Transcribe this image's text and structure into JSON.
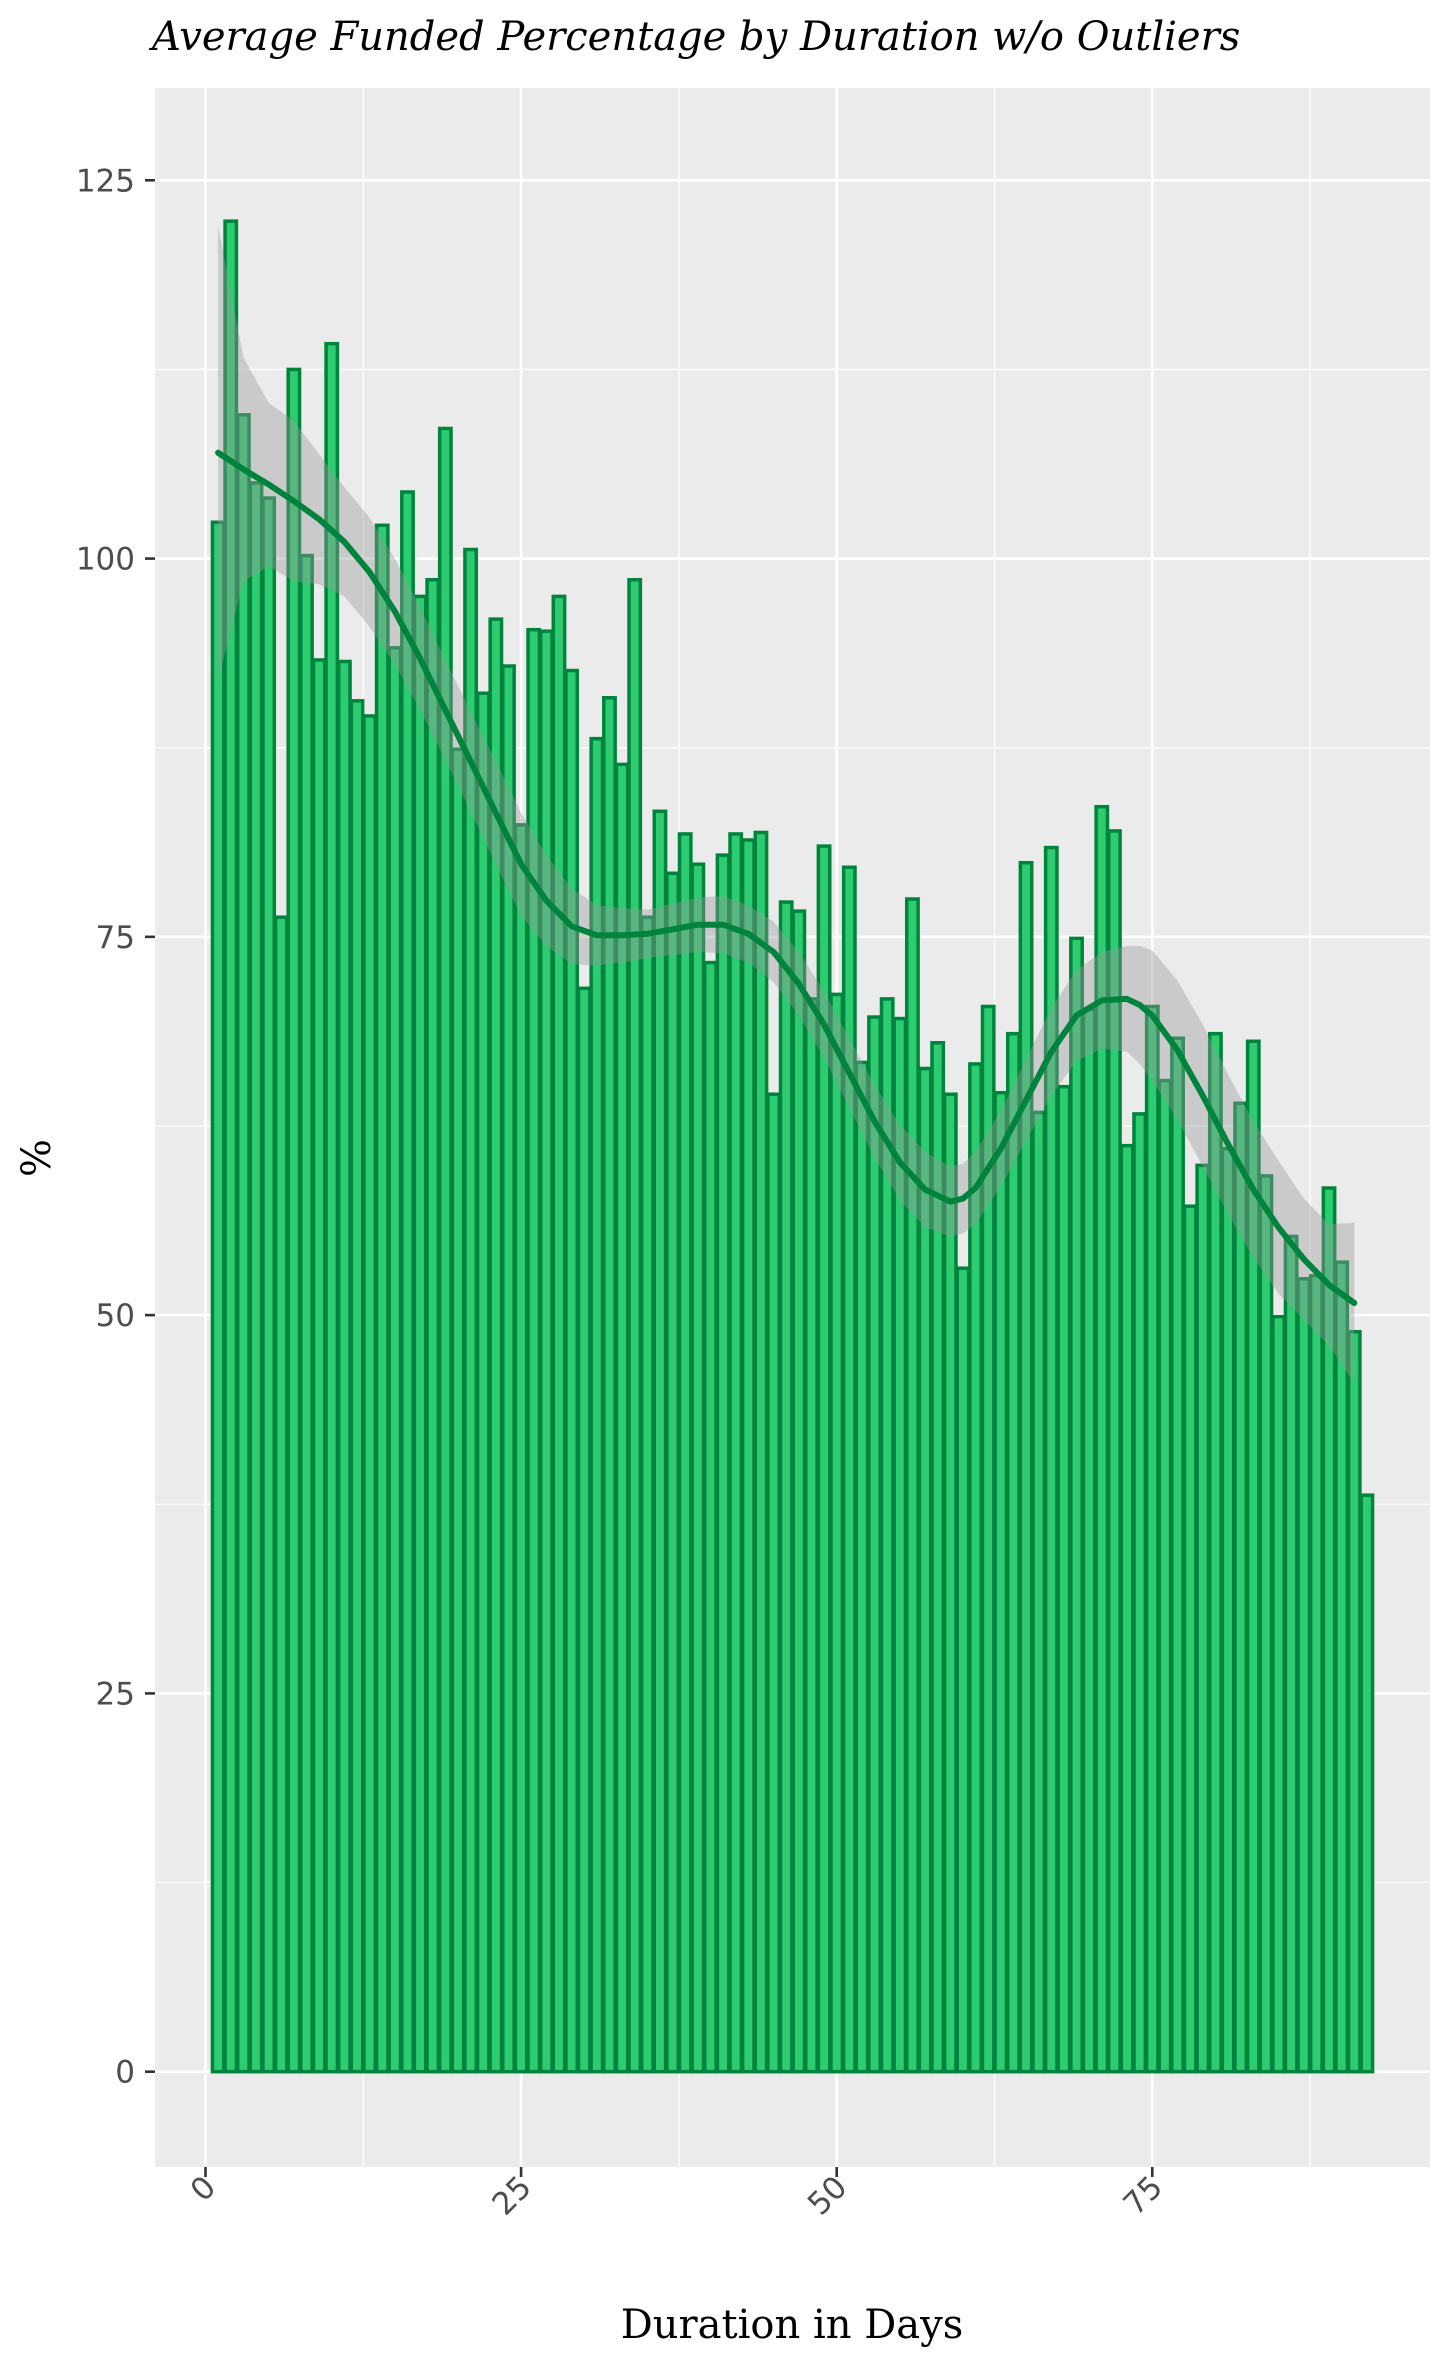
{
  "chart_data": {
    "type": "bar",
    "title": "Average Funded Percentage by Duration w/o Outliers",
    "xlabel": "Duration in Days",
    "ylabel": "%",
    "xlim": [
      -4,
      97
    ],
    "ylim": [
      -6.3,
      131.1
    ],
    "x_ticks": [
      0,
      25,
      50,
      75
    ],
    "y_ticks": [
      0,
      25,
      50,
      75,
      100,
      125
    ],
    "x_tick_labels": [
      "0",
      "25",
      "50",
      "75"
    ],
    "y_tick_labels": [
      "0",
      "25",
      "50",
      "75",
      "100",
      "125"
    ],
    "grid": true,
    "legend": "none",
    "bar_color": "#2ecc71",
    "bar_outline_color": "#00843d",
    "panel_background": "#ebebeb",
    "x": [
      1,
      2,
      3,
      4,
      5,
      6,
      7,
      8,
      9,
      10,
      11,
      12,
      13,
      14,
      15,
      16,
      17,
      18,
      19,
      20,
      21,
      22,
      23,
      24,
      25,
      26,
      27,
      28,
      29,
      30,
      31,
      32,
      33,
      34,
      35,
      36,
      37,
      38,
      39,
      40,
      41,
      42,
      43,
      44,
      45,
      46,
      47,
      48,
      49,
      50,
      51,
      52,
      53,
      54,
      55,
      56,
      57,
      58,
      59,
      60,
      61,
      62,
      63,
      64,
      65,
      66,
      67,
      68,
      69,
      70,
      71,
      72,
      73,
      74,
      75,
      76,
      77,
      78,
      79,
      80,
      81,
      82,
      83,
      84,
      85,
      86,
      87,
      88,
      89,
      90,
      91,
      92
    ],
    "values": [
      102.4,
      122.3,
      109.5,
      105.0,
      104.0,
      76.3,
      112.5,
      100.2,
      93.3,
      114.2,
      93.2,
      90.6,
      89.6,
      102.2,
      94.1,
      104.4,
      97.5,
      98.6,
      108.6,
      87.4,
      100.6,
      91.1,
      96.0,
      92.9,
      82.4,
      95.3,
      95.2,
      97.5,
      92.6,
      71.6,
      88.1,
      90.8,
      86.4,
      98.6,
      76.3,
      83.3,
      79.2,
      81.8,
      79.8,
      73.3,
      80.4,
      81.8,
      81.4,
      81.9,
      64.6,
      77.3,
      76.7,
      70.9,
      81.0,
      71.2,
      79.6,
      66.7,
      69.7,
      70.9,
      69.6,
      77.5,
      66.3,
      68.0,
      64.6,
      53.1,
      66.6,
      70.4,
      64.7,
      68.6,
      79.9,
      63.4,
      80.9,
      65.1,
      74.9,
      70.2,
      83.6,
      82.0,
      61.2,
      63.3,
      70.4,
      65.5,
      68.3,
      57.2,
      59.9,
      68.6,
      61.0,
      64.0,
      68.1,
      59.2,
      49.9,
      55.2,
      52.4,
      52.6,
      58.4,
      53.5,
      48.9,
      38.1
    ],
    "smooth": {
      "method": "loess",
      "x": [
        1,
        3,
        5,
        7,
        9,
        11,
        13,
        15,
        17,
        19,
        21,
        23,
        25,
        27,
        29,
        31,
        33,
        35,
        37,
        39,
        41,
        43,
        45,
        47,
        49,
        51,
        53,
        55,
        57,
        59,
        60,
        61,
        63,
        65,
        67,
        69,
        71,
        73,
        74,
        75,
        77,
        79,
        81,
        83,
        85,
        87,
        89,
        91
      ],
      "y": [
        107.0,
        105.9,
        104.9,
        103.8,
        102.6,
        101.1,
        99.1,
        96.5,
        93.4,
        90.0,
        86.6,
        83.2,
        79.8,
        77.4,
        75.7,
        75.1,
        75.1,
        75.2,
        75.5,
        75.8,
        75.8,
        75.2,
        74.0,
        71.9,
        69.2,
        66.0,
        62.8,
        60.1,
        58.3,
        57.5,
        57.7,
        58.4,
        61.0,
        64.2,
        67.4,
        69.8,
        70.8,
        70.9,
        70.5,
        69.8,
        67.5,
        64.5,
        61.3,
        58.3,
        55.8,
        53.7,
        52.0,
        50.8
      ],
      "lower": [
        92.0,
        98.5,
        99.5,
        98.5,
        98.3,
        97.5,
        95.5,
        93.0,
        90.0,
        86.7,
        83.3,
        79.8,
        76.4,
        74.4,
        73.2,
        73.1,
        73.3,
        73.6,
        73.8,
        74.0,
        73.9,
        73.3,
        72.0,
        69.8,
        67.0,
        63.7,
        60.4,
        57.6,
        55.8,
        55.2,
        55.4,
        56.0,
        58.5,
        61.5,
        64.5,
        66.8,
        67.6,
        67.4,
        66.6,
        65.5,
        62.9,
        59.8,
        56.7,
        53.8,
        51.4,
        49.7,
        48.0,
        45.5
      ],
      "upper": [
        122.0,
        113.3,
        110.3,
        109.1,
        106.9,
        104.7,
        102.7,
        100.0,
        96.8,
        93.3,
        89.9,
        86.6,
        83.2,
        80.4,
        78.2,
        77.1,
        76.9,
        76.8,
        77.2,
        77.6,
        77.7,
        77.1,
        76.0,
        74.0,
        71.4,
        68.3,
        65.2,
        62.6,
        60.8,
        59.8,
        60.0,
        60.8,
        63.5,
        66.9,
        70.3,
        72.8,
        74.0,
        74.4,
        74.4,
        74.1,
        72.1,
        69.2,
        65.9,
        62.8,
        60.2,
        57.7,
        56.0,
        56.1
      ]
    }
  }
}
